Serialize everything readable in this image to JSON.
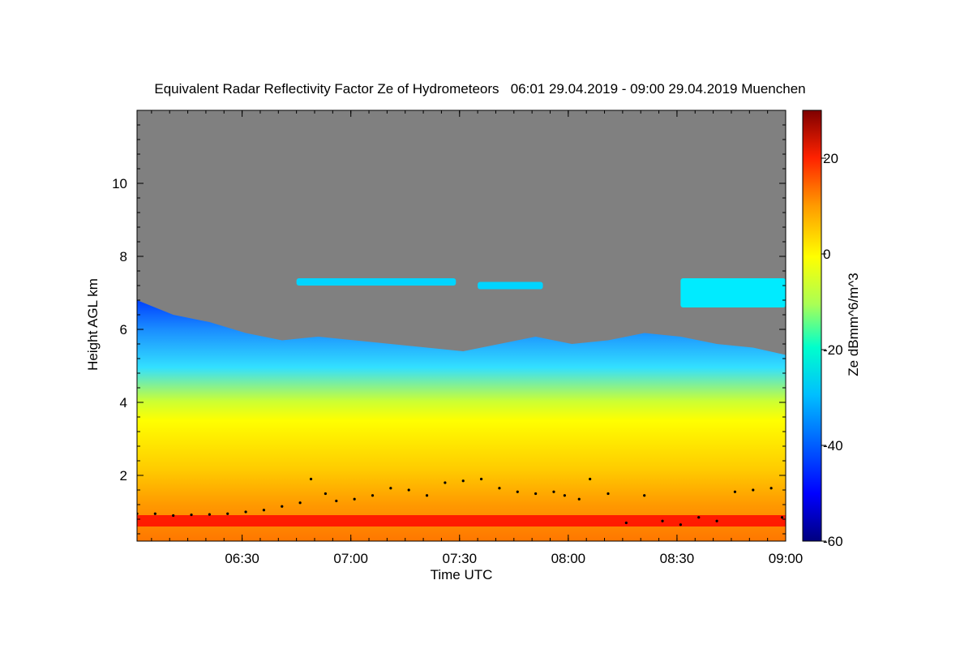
{
  "chart_data": {
    "type": "heatmap",
    "title": "Equivalent Radar Reflectivity Factor Ze of Hydrometeors   06:01 29.04.2019 - 09:00 29.04.2019 Muenchen",
    "xlabel": "Time UTC",
    "ylabel": "Height AGL km",
    "colorbar_label": "Ze dBmm^6/m^3",
    "x_range": [
      "06:01",
      "09:00"
    ],
    "y_range": [
      0.2,
      12
    ],
    "colorbar_range": [
      -60,
      30
    ],
    "x_ticks": [
      {
        "label": "06:30",
        "minutes": 29
      },
      {
        "label": "07:00",
        "minutes": 59
      },
      {
        "label": "07:30",
        "minutes": 89
      },
      {
        "label": "08:00",
        "minutes": 119
      },
      {
        "label": "08:30",
        "minutes": 149
      },
      {
        "label": "09:00",
        "minutes": 179
      }
    ],
    "y_ticks": [
      {
        "label": "2",
        "value": 2
      },
      {
        "label": "4",
        "value": 4
      },
      {
        "label": "6",
        "value": 6
      },
      {
        "label": "8",
        "value": 8
      },
      {
        "label": "10",
        "value": 10
      }
    ],
    "colorbar_ticks": [
      {
        "label": "20",
        "value": 20
      },
      {
        "label": "0",
        "value": 0
      },
      {
        "label": "-20",
        "value": -20
      },
      {
        "label": "-40",
        "value": -40
      },
      {
        "label": "-60",
        "value": -60
      }
    ],
    "no_signal_color": "#808080",
    "colormap": [
      "#00007f",
      "#0000ff",
      "#007fff",
      "#00ffff",
      "#7fff7f",
      "#ffff00",
      "#ff7f00",
      "#ff0000",
      "#7f0000"
    ],
    "cloud_top_km": [
      [
        0,
        6.8
      ],
      [
        10,
        6.4
      ],
      [
        20,
        6.2
      ],
      [
        30,
        5.9
      ],
      [
        40,
        5.7
      ],
      [
        50,
        5.8
      ],
      [
        60,
        5.7
      ],
      [
        70,
        5.6
      ],
      [
        80,
        5.5
      ],
      [
        90,
        5.4
      ],
      [
        100,
        5.6
      ],
      [
        110,
        5.8
      ],
      [
        120,
        5.6
      ],
      [
        130,
        5.7
      ],
      [
        140,
        5.9
      ],
      [
        150,
        5.8
      ],
      [
        160,
        5.6
      ],
      [
        170,
        5.5
      ],
      [
        179,
        5.3
      ]
    ],
    "cloud_base_km": [
      [
        0,
        0.2
      ],
      [
        179,
        0.2
      ]
    ],
    "upper_layers": [
      {
        "t_start": 44,
        "t_end": 88,
        "base_km": 7.2,
        "top_km": 7.4,
        "ze_dbz": -30
      },
      {
        "t_start": 94,
        "t_end": 112,
        "base_km": 7.1,
        "top_km": 7.3,
        "ze_dbz": -30
      },
      {
        "t_start": 150,
        "t_end": 179,
        "base_km": 6.6,
        "top_km": 7.4,
        "ze_dbz": -28
      }
    ],
    "melting_layer_km": 0.8,
    "melting_layer_ze_dbz": 18,
    "cloud_base_detections_km": [
      [
        0,
        0.95
      ],
      [
        5,
        0.95
      ],
      [
        10,
        0.9
      ],
      [
        15,
        0.92
      ],
      [
        20,
        0.93
      ],
      [
        25,
        0.95
      ],
      [
        30,
        1.0
      ],
      [
        35,
        1.05
      ],
      [
        40,
        1.15
      ],
      [
        45,
        1.25
      ],
      [
        48,
        1.9
      ],
      [
        52,
        1.5
      ],
      [
        55,
        1.3
      ],
      [
        60,
        1.35
      ],
      [
        65,
        1.45
      ],
      [
        70,
        1.65
      ],
      [
        75,
        1.6
      ],
      [
        80,
        1.45
      ],
      [
        85,
        1.8
      ],
      [
        90,
        1.85
      ],
      [
        95,
        1.9
      ],
      [
        100,
        1.65
      ],
      [
        105,
        1.55
      ],
      [
        110,
        1.5
      ],
      [
        115,
        1.55
      ],
      [
        118,
        1.45
      ],
      [
        122,
        1.35
      ],
      [
        125,
        1.9
      ],
      [
        130,
        1.5
      ],
      [
        135,
        0.7
      ],
      [
        140,
        1.45
      ],
      [
        145,
        0.75
      ],
      [
        150,
        0.65
      ],
      [
        155,
        0.85
      ],
      [
        160,
        0.75
      ],
      [
        165,
        1.55
      ],
      [
        170,
        1.6
      ],
      [
        175,
        1.65
      ],
      [
        178,
        0.85
      ]
    ]
  }
}
